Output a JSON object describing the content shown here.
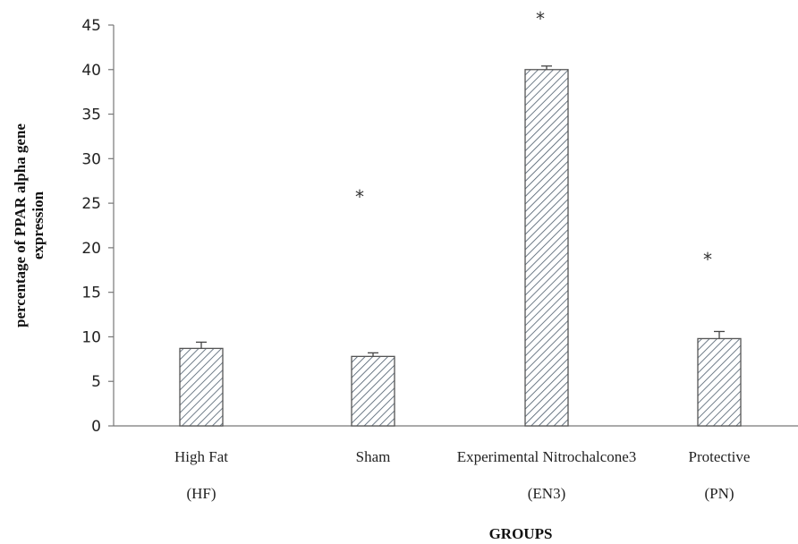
{
  "chart_data": {
    "type": "bar",
    "title": "",
    "ylabel": [
      "percentage of PPAR alpha gene",
      "expression"
    ],
    "xlabel": "GROUPS",
    "ylim": [
      0,
      45
    ],
    "yticks": [
      0,
      5,
      10,
      15,
      20,
      25,
      30,
      35,
      40,
      45
    ],
    "categories": [
      [
        "High Fat",
        "(HF)"
      ],
      [
        "Sham",
        ""
      ],
      [
        "Experimental Nitrochalcone3",
        "(EN3)"
      ],
      [
        "Protective",
        "(PN)"
      ]
    ],
    "values": [
      8.7,
      7.8,
      40.0,
      9.8
    ],
    "errors": [
      0.7,
      0.4,
      0.4,
      0.8
    ],
    "significance_marker": "*",
    "significance_y": [
      null,
      26,
      46,
      19
    ],
    "bar_fill": "hatched",
    "bar_edge_color": "#555555",
    "hatch_color": "#4a5a6a",
    "grid": false,
    "legend": "none"
  }
}
